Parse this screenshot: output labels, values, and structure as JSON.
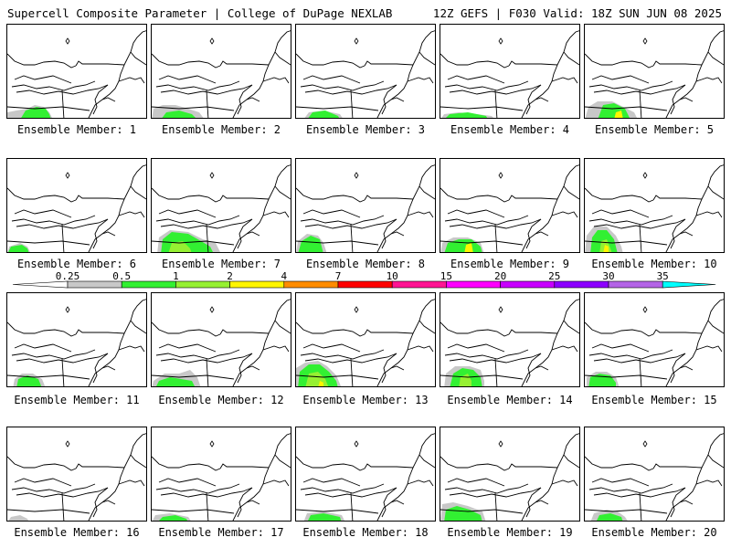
{
  "header": {
    "title_left": "Supercell Composite Parameter | College of DuPage NEXLAB",
    "title_right": "12Z GEFS | F030 Valid: 18Z SUN JUN 08 2025"
  },
  "member_prefix": "Ensemble Member:",
  "members": [
    {
      "number": 1,
      "label": "Ensemble Member: 1"
    },
    {
      "number": 2,
      "label": "Ensemble Member: 2"
    },
    {
      "number": 3,
      "label": "Ensemble Member: 3"
    },
    {
      "number": 4,
      "label": "Ensemble Member: 4"
    },
    {
      "number": 5,
      "label": "Ensemble Member: 5"
    },
    {
      "number": 6,
      "label": "Ensemble Member: 6"
    },
    {
      "number": 7,
      "label": "Ensemble Member: 7"
    },
    {
      "number": 8,
      "label": "Ensemble Member: 8"
    },
    {
      "number": 9,
      "label": "Ensemble Member: 9"
    },
    {
      "number": 10,
      "label": "Ensemble Member: 10"
    },
    {
      "number": 11,
      "label": "Ensemble Member: 11"
    },
    {
      "number": 12,
      "label": "Ensemble Member: 12"
    },
    {
      "number": 13,
      "label": "Ensemble Member: 13"
    },
    {
      "number": 14,
      "label": "Ensemble Member: 14"
    },
    {
      "number": 15,
      "label": "Ensemble Member: 15"
    },
    {
      "number": 16,
      "label": "Ensemble Member: 16"
    },
    {
      "number": 17,
      "label": "Ensemble Member: 17"
    },
    {
      "number": 18,
      "label": "Ensemble Member: 18"
    },
    {
      "number": 19,
      "label": "Ensemble Member: 19"
    },
    {
      "number": 20,
      "label": "Ensemble Member: 20"
    }
  ],
  "colorbar": {
    "labels": [
      "0.25",
      "0.5",
      "1",
      "2",
      "4",
      "7",
      "10",
      "15",
      "20",
      "25",
      "30",
      "35"
    ],
    "colors": [
      "#ffffff",
      "#c8c8c8",
      "#32f032",
      "#96f032",
      "#fff500",
      "#ff8c00",
      "#ff0000",
      "#ff1493",
      "#ff00ff",
      "#c800ff",
      "#8c00ff",
      "#b464e6",
      "#00ffff"
    ]
  }
}
